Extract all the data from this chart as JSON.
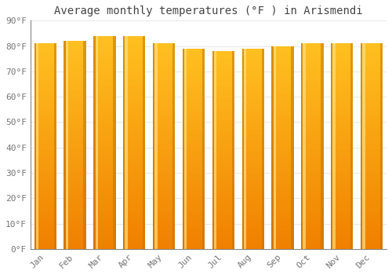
{
  "title": "Average monthly temperatures (°F ) in Arismendi",
  "months": [
    "Jan",
    "Feb",
    "Mar",
    "Apr",
    "May",
    "Jun",
    "Jul",
    "Aug",
    "Sep",
    "Oct",
    "Nov",
    "Dec"
  ],
  "values": [
    81,
    82,
    84,
    84,
    81,
    79,
    78,
    79,
    80,
    81,
    81,
    81
  ],
  "bar_color_top": "#FFC020",
  "bar_color_bottom": "#F08000",
  "bar_edge_color": "#C07000",
  "ylim": [
    0,
    90
  ],
  "yticks": [
    0,
    10,
    20,
    30,
    40,
    50,
    60,
    70,
    80,
    90
  ],
  "ytick_labels": [
    "0°F",
    "10°F",
    "20°F",
    "30°F",
    "40°F",
    "50°F",
    "60°F",
    "70°F",
    "80°F",
    "90°F"
  ],
  "background_color": "#FFFFFF",
  "grid_color": "#E8E8E8",
  "bar_width": 0.75,
  "title_fontsize": 10,
  "tick_fontsize": 8
}
